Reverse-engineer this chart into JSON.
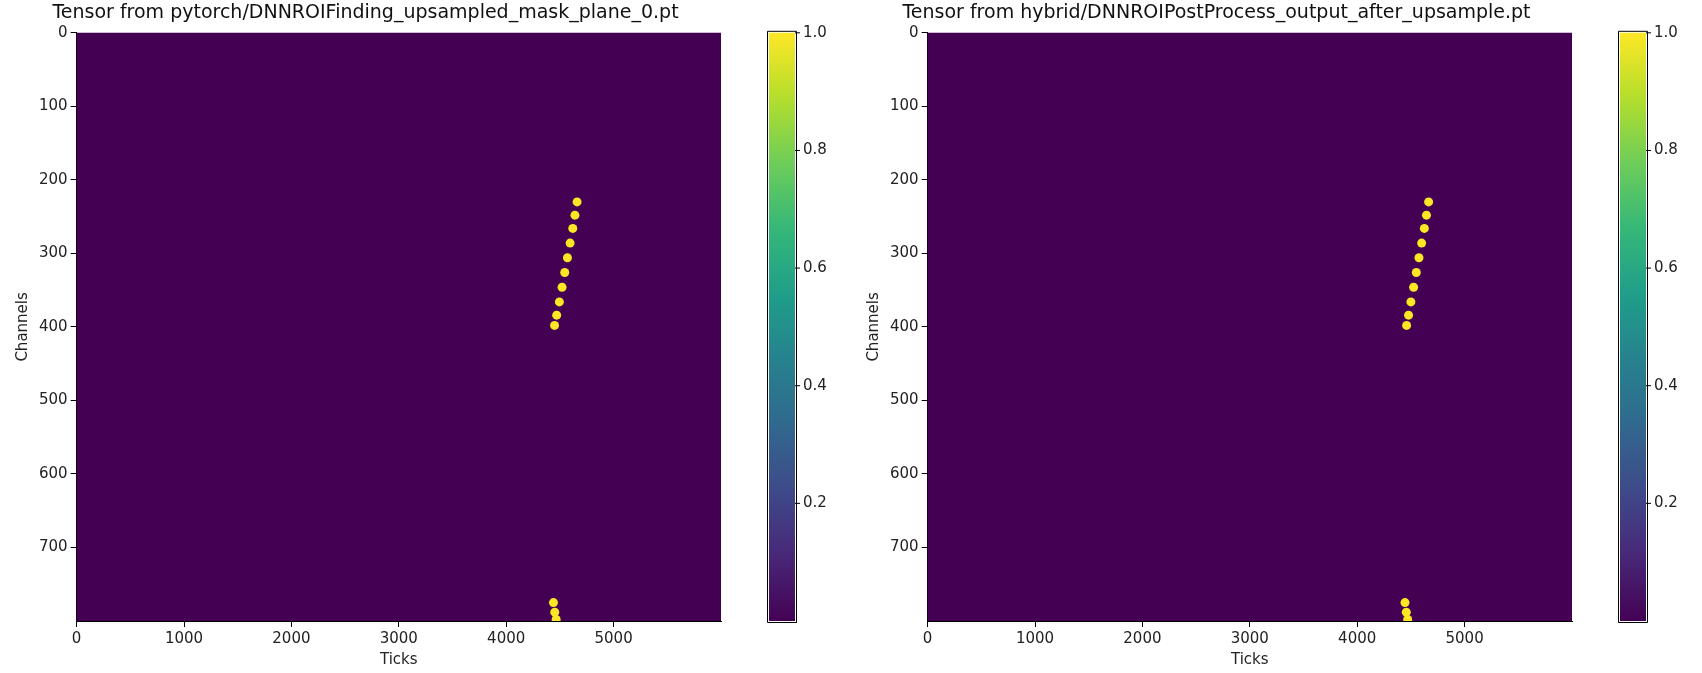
{
  "chart_data": [
    {
      "type": "scatter",
      "title": "Tensor from pytorch/DNNROIFinding_upsampled_mask_plane_0.pt",
      "xlabel": "Ticks",
      "ylabel": "Channels",
      "xlim": [
        0,
        6000
      ],
      "ylim": [
        800,
        0
      ],
      "xticks": [
        0,
        1000,
        2000,
        3000,
        4000,
        5000
      ],
      "yticks": [
        0,
        100,
        200,
        300,
        400,
        500,
        600,
        700
      ],
      "clim": [
        0,
        1
      ],
      "cticks": [
        0.2,
        0.4,
        0.6,
        0.8,
        {
          "value": 1,
          "label": "1.0"
        }
      ],
      "marker": "circle",
      "grid": false,
      "legend": false,
      "x": [
        4660,
        4640,
        4620,
        4595,
        4570,
        4545,
        4520,
        4495,
        4470,
        4450,
        4440,
        4452,
        4465
      ],
      "values": [
        230,
        248,
        266,
        286,
        306,
        326,
        346,
        366,
        384,
        398,
        775,
        788,
        798
      ],
      "cvalues": [
        1,
        1,
        1,
        1,
        1,
        1,
        1,
        1,
        1,
        1,
        1,
        1,
        1
      ]
    },
    {
      "type": "scatter",
      "title": "Tensor from hybrid/DNNROIPostProcess_output_after_upsample.pt",
      "xlabel": "Ticks",
      "ylabel": "Channels",
      "xlim": [
        0,
        6000
      ],
      "ylim": [
        800,
        0
      ],
      "xticks": [
        0,
        1000,
        2000,
        3000,
        4000,
        5000
      ],
      "yticks": [
        0,
        100,
        200,
        300,
        400,
        500,
        600,
        700
      ],
      "clim": [
        0,
        1
      ],
      "cticks": [
        0.2,
        0.4,
        0.6,
        0.8,
        {
          "value": 1,
          "label": "1.0"
        }
      ],
      "marker": "circle",
      "grid": false,
      "legend": false,
      "x": [
        4665,
        4645,
        4625,
        4600,
        4575,
        4550,
        4525,
        4500,
        4478,
        4460,
        4445,
        4457,
        4470
      ],
      "values": [
        230,
        248,
        266,
        286,
        306,
        326,
        346,
        366,
        384,
        398,
        775,
        788,
        798
      ],
      "cvalues": [
        1,
        1,
        1,
        1,
        1,
        1,
        1,
        1,
        1,
        1,
        1,
        1,
        1
      ]
    }
  ]
}
